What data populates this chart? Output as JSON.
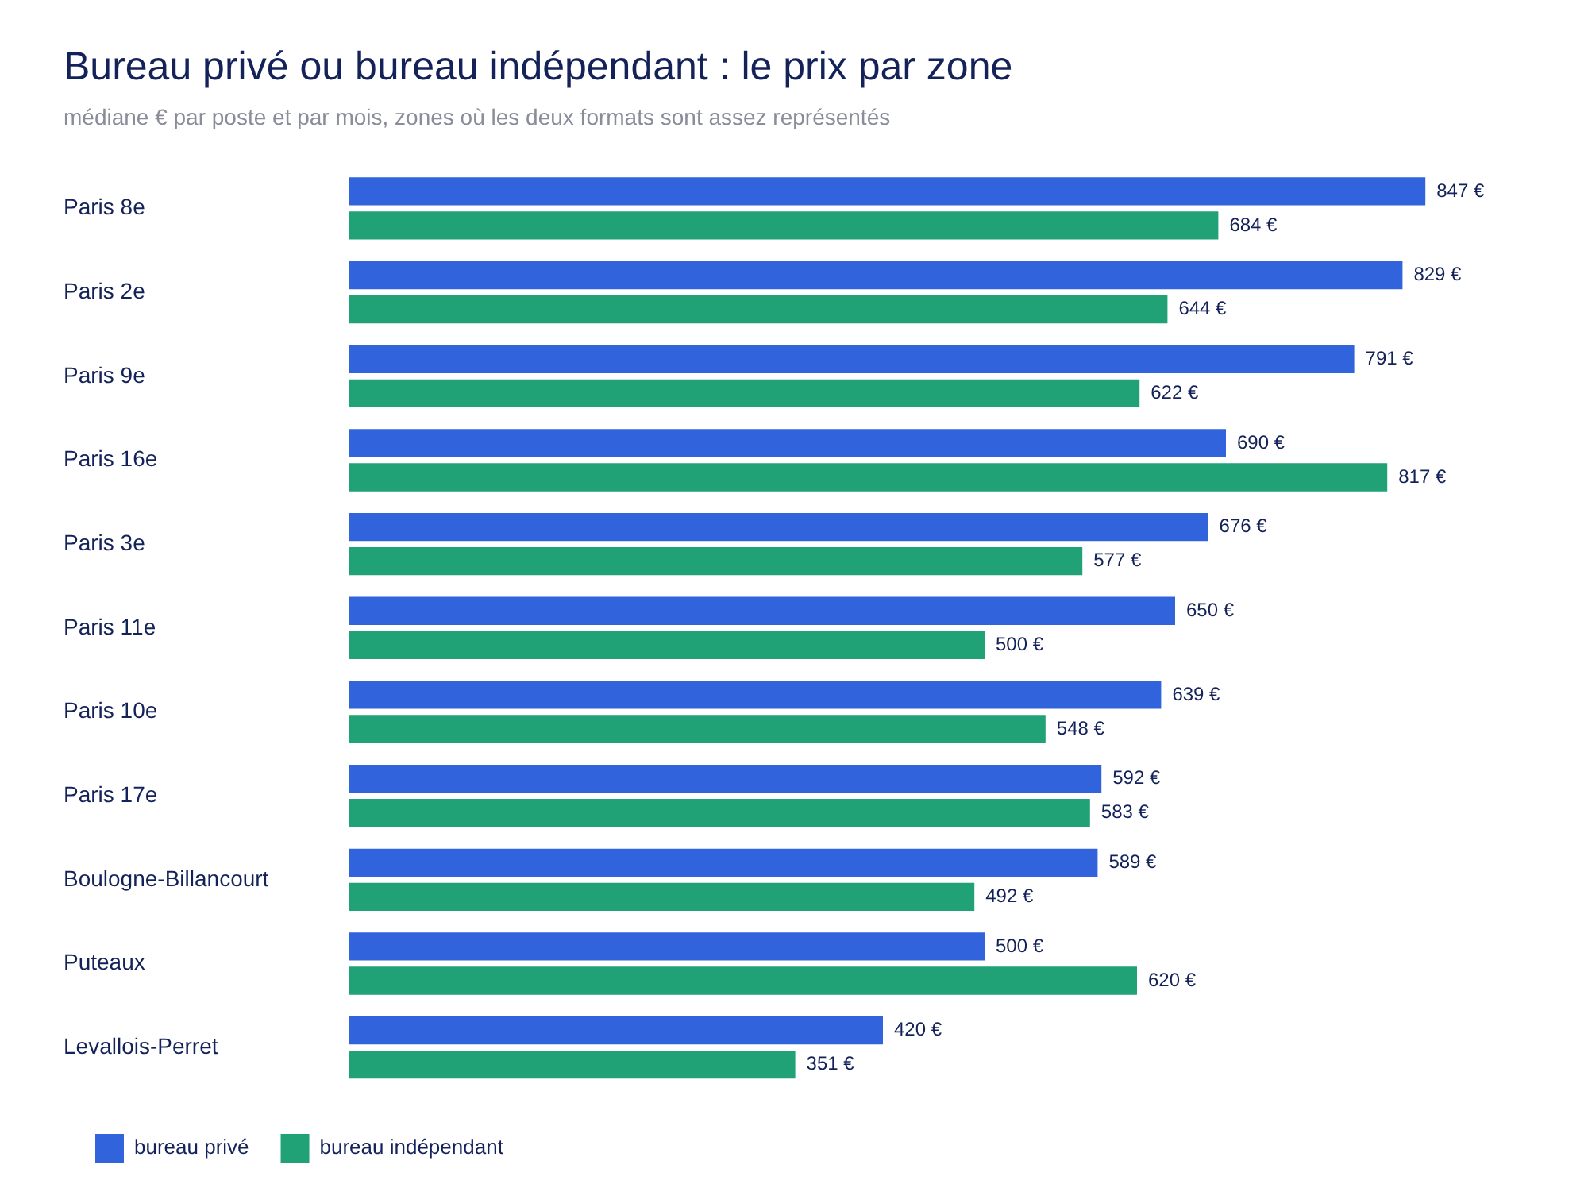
{
  "chart_data": {
    "type": "bar",
    "orientation": "horizontal",
    "title": "Bureau privé ou bureau indépendant : le prix par zone",
    "subtitle": "médiane € par poste et par mois, zones où les deux formats sont assez représentés",
    "categories": [
      "Paris 8e",
      "Paris 2e",
      "Paris 9e",
      "Paris 16e",
      "Paris 3e",
      "Paris 11e",
      "Paris 10e",
      "Paris 17e",
      "Boulogne-Billancourt",
      "Puteaux",
      "Levallois-Perret"
    ],
    "series": [
      {
        "name": "bureau privé",
        "color": "#3164dc",
        "values": [
          847,
          829,
          791,
          690,
          676,
          650,
          639,
          592,
          589,
          500,
          420
        ],
        "value_labels": [
          "847 €",
          "829 €",
          "791 €",
          "690 €",
          "676 €",
          "650 €",
          "639 €",
          "592 €",
          "589 €",
          "500 €",
          "420 €"
        ]
      },
      {
        "name": "bureau indépendant",
        "color": "#20a176",
        "values": [
          684,
          644,
          622,
          817,
          577,
          500,
          548,
          583,
          492,
          620,
          351
        ],
        "value_labels": [
          "684 €",
          "644 €",
          "622 €",
          "817 €",
          "577 €",
          "500 €",
          "548 €",
          "583 €",
          "492 €",
          "620 €",
          "351 €"
        ]
      }
    ],
    "grid": false,
    "legend": "bottom left",
    "tick_labels": "y"
  }
}
